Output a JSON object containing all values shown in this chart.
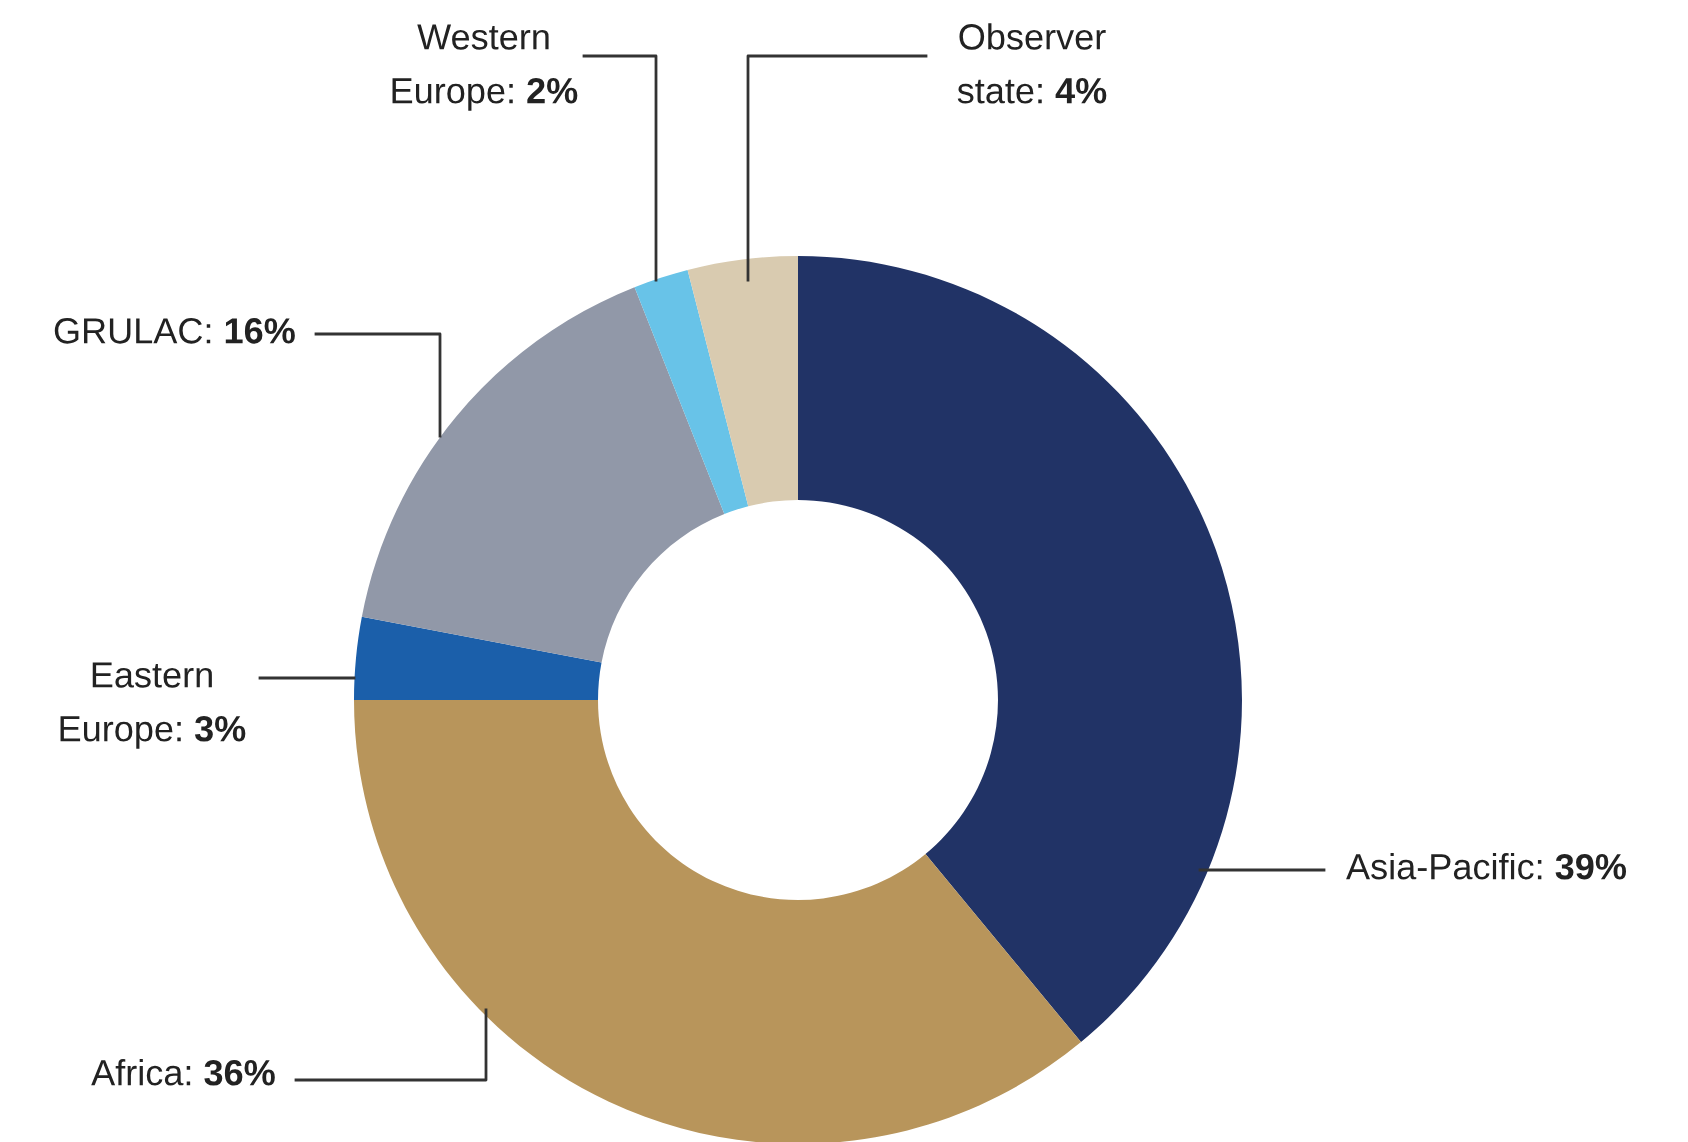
{
  "chart_data": {
    "type": "donut",
    "categories": [
      "Asia-Pacific",
      "Africa",
      "Eastern Europe",
      "GRULAC",
      "Western Europe",
      "Observer state"
    ],
    "values": [
      39,
      36,
      3,
      16,
      2,
      4
    ],
    "value_labels": [
      "39%",
      "36%",
      "3%",
      "16%",
      "2%",
      "4%"
    ],
    "colors": [
      "#213366",
      "#b8955b",
      "#1b5faa",
      "#9198a8",
      "#68c3e8",
      "#d9cbb0"
    ],
    "legend": false
  }
}
